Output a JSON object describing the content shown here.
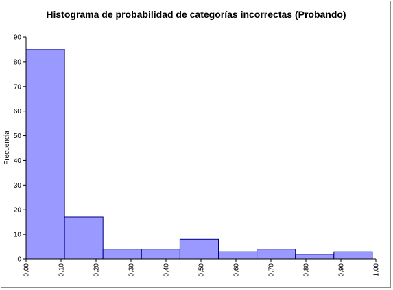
{
  "chart_data": {
    "type": "bar",
    "title": "Histograma de probabilidad de categorías incorrectas (Probando)",
    "xlabel": "",
    "ylabel": "Frecuencia",
    "ylim": [
      0,
      90
    ],
    "yticks": [
      0,
      10,
      20,
      30,
      40,
      50,
      60,
      70,
      80,
      90
    ],
    "xlim": [
      0,
      1
    ],
    "xticks": [
      "0.00",
      "0.10",
      "0.20",
      "0.30",
      "0.40",
      "0.50",
      "0.60",
      "0.70",
      "0.80",
      "0.90",
      "1.00"
    ],
    "bins": [
      {
        "x0": 0.0,
        "x1": 0.11,
        "value": 85
      },
      {
        "x0": 0.11,
        "x1": 0.22,
        "value": 17
      },
      {
        "x0": 0.22,
        "x1": 0.33,
        "value": 4
      },
      {
        "x0": 0.33,
        "x1": 0.44,
        "value": 4
      },
      {
        "x0": 0.44,
        "x1": 0.55,
        "value": 8
      },
      {
        "x0": 0.55,
        "x1": 0.66,
        "value": 3
      },
      {
        "x0": 0.66,
        "x1": 0.77,
        "value": 4
      },
      {
        "x0": 0.77,
        "x1": 0.88,
        "value": 2
      },
      {
        "x0": 0.88,
        "x1": 0.99,
        "value": 3
      }
    ],
    "grid": false,
    "legend": "none",
    "bar_color": "#9999ff",
    "bar_edge_color": "#000080"
  }
}
